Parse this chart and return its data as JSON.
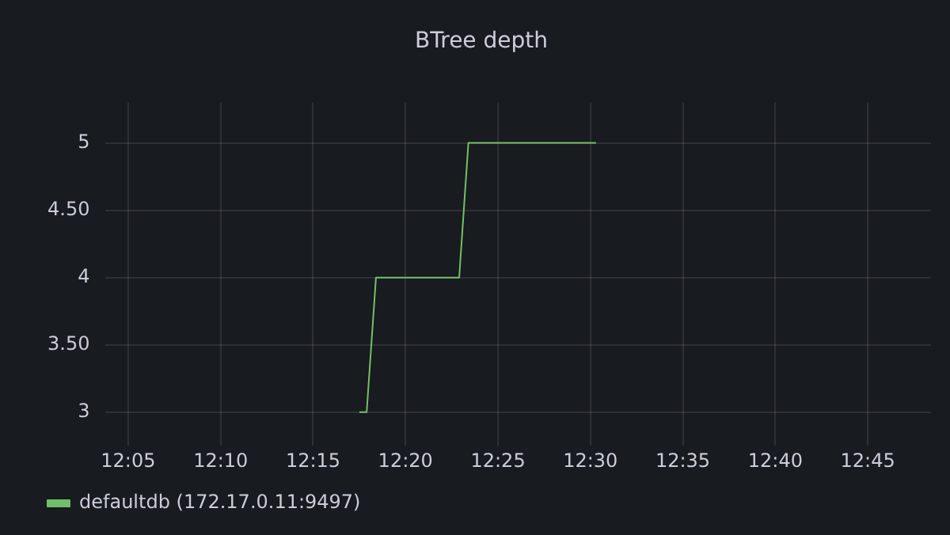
{
  "chart_data": {
    "type": "line",
    "title": "BTree depth",
    "x": [
      12.2917,
      12.2983,
      12.3067,
      12.3817,
      12.39,
      12.505
    ],
    "series": [
      {
        "name": "defaultdb (172.17.0.11:9497)",
        "color": "#73bf69",
        "values": [
          3,
          3,
          4,
          4,
          5,
          5
        ]
      }
    ],
    "xlim": [
      12.063,
      12.807
    ],
    "xticks": [
      {
        "value": 12.0833,
        "label": "12:05"
      },
      {
        "value": 12.1667,
        "label": "12:10"
      },
      {
        "value": 12.25,
        "label": "12:15"
      },
      {
        "value": 12.3333,
        "label": "12:20"
      },
      {
        "value": 12.4167,
        "label": "12:25"
      },
      {
        "value": 12.5,
        "label": "12:30"
      },
      {
        "value": 12.5833,
        "label": "12:35"
      },
      {
        "value": 12.6667,
        "label": "12:40"
      },
      {
        "value": 12.75,
        "label": "12:45"
      }
    ],
    "ylim": [
      2.75,
      5.3
    ],
    "yticks": [
      3,
      {
        "value": 3.5,
        "label": "3.50"
      },
      4,
      {
        "value": 4.5,
        "label": "4.50"
      },
      5
    ],
    "grid": true,
    "legend": "bottom left",
    "marker": "none",
    "line_style": "solid"
  }
}
